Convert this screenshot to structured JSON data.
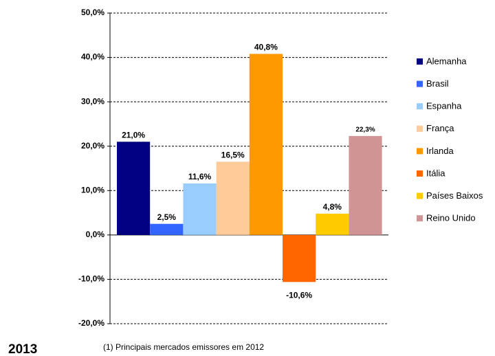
{
  "chart_data": {
    "type": "bar",
    "categories": [
      null
    ],
    "series": [
      {
        "name": "Alemanha",
        "color": "#000080",
        "values": [
          21.0
        ],
        "value_labels": [
          "21,0%"
        ]
      },
      {
        "name": "Brasil",
        "color": "#3366ff",
        "values": [
          2.5
        ],
        "value_labels": [
          "2,5%"
        ]
      },
      {
        "name": "Espanha",
        "color": "#99ccff",
        "values": [
          11.6
        ],
        "value_labels": [
          "11,6%"
        ]
      },
      {
        "name": "França",
        "color": "#ffcc99",
        "values": [
          16.5
        ],
        "value_labels": [
          "16,5%"
        ]
      },
      {
        "name": "Irlanda",
        "color": "#ff9900",
        "values": [
          40.8
        ],
        "value_labels": [
          "40,8%"
        ]
      },
      {
        "name": "Itália",
        "color": "#ff6600",
        "values": [
          -10.6
        ],
        "value_labels": [
          "-10,6%"
        ]
      },
      {
        "name": "Países Baixos",
        "color": "#ffcc00",
        "values": [
          4.8
        ],
        "value_labels": [
          "4,8%"
        ]
      },
      {
        "name": "Reino Unido",
        "color": "#d09494",
        "values": [
          22.3
        ],
        "value_labels": [
          "22,3%"
        ]
      }
    ],
    "ylim": [
      -20,
      50
    ],
    "yticks": [
      {
        "value": -20,
        "label": "-20,0%"
      },
      {
        "value": -10,
        "label": "-10,0%"
      },
      {
        "value": 0,
        "label": "0,0%"
      },
      {
        "value": 10,
        "label": "10,0%"
      },
      {
        "value": 20,
        "label": "20,0%"
      },
      {
        "value": 30,
        "label": "30,0%"
      },
      {
        "value": 40,
        "label": "40,0%"
      },
      {
        "value": 50,
        "label": "50,0%"
      }
    ],
    "grid": true,
    "legend": "right",
    "year_label": "2013",
    "footnote": "(1) Principais mercados emissores em 2012"
  }
}
